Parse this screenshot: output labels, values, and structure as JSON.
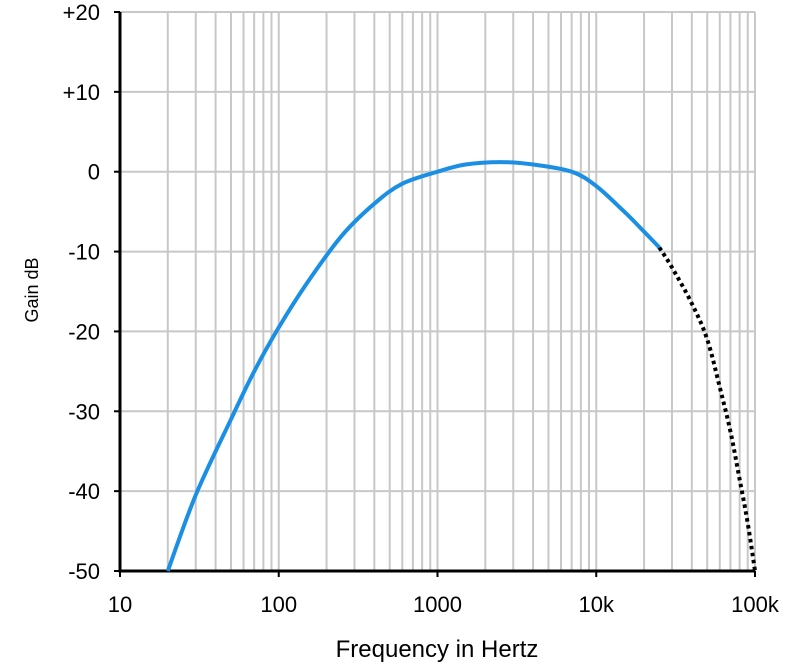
{
  "chart_data": {
    "type": "line",
    "title": "",
    "xlabel": "Frequency in Hertz",
    "ylabel": "Gain dB",
    "x_scale": "log",
    "xlim": [
      10,
      100000
    ],
    "ylim": [
      -50,
      20
    ],
    "x_ticks": [
      {
        "value": 10,
        "label": "10"
      },
      {
        "value": 100,
        "label": "100"
      },
      {
        "value": 1000,
        "label": "1000"
      },
      {
        "value": 10000,
        "label": "10k"
      },
      {
        "value": 100000,
        "label": "100k"
      }
    ],
    "y_ticks": [
      {
        "value": 20,
        "label": "+20"
      },
      {
        "value": 10,
        "label": "+10"
      },
      {
        "value": 0,
        "label": "0"
      },
      {
        "value": -10,
        "label": "-10"
      },
      {
        "value": -20,
        "label": "-20"
      },
      {
        "value": -30,
        "label": "-30"
      },
      {
        "value": -40,
        "label": "-40"
      },
      {
        "value": -50,
        "label": "-50"
      }
    ],
    "grid": true,
    "series": [
      {
        "style": "solid",
        "color": "#1A8FE3",
        "x": [
          20,
          30,
          50,
          70,
          100,
          150,
          250,
          400,
          600,
          1000,
          1500,
          2500,
          4000,
          7000,
          10000,
          15000,
          20000,
          25000
        ],
        "y": [
          -50,
          -40.5,
          -31,
          -25,
          -19.5,
          -14,
          -8,
          -4,
          -1.5,
          0,
          0.9,
          1.2,
          0.9,
          0,
          -1.8,
          -5,
          -7.5,
          -9.5
        ]
      },
      {
        "style": "dotted",
        "color": "#000000",
        "x": [
          25000,
          30000,
          40000,
          50000,
          60000,
          70000,
          80000,
          90000,
          100000
        ],
        "y": [
          -9.5,
          -12,
          -16.5,
          -21,
          -27,
          -32.5,
          -38.5,
          -44,
          -50
        ]
      }
    ]
  }
}
